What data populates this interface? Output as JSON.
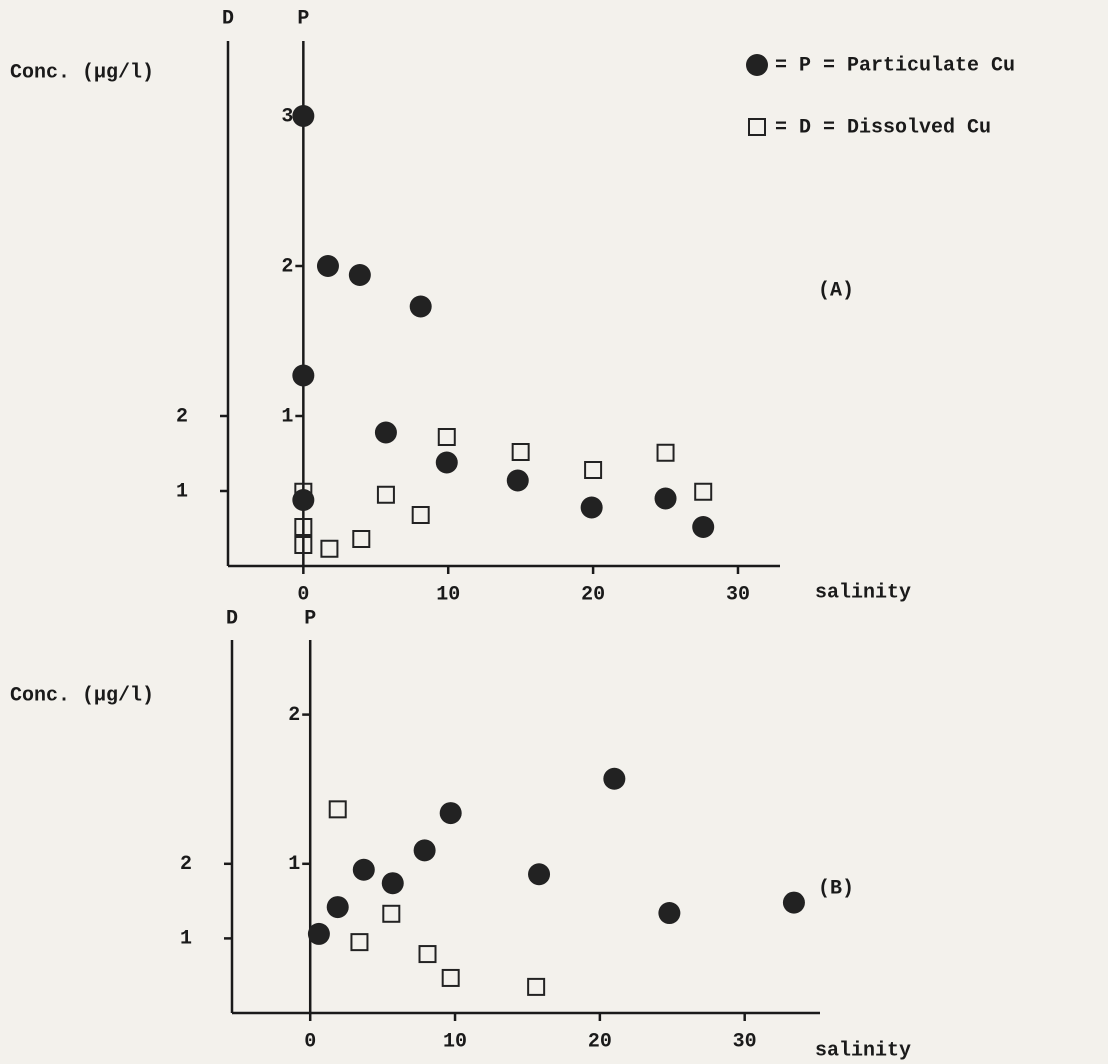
{
  "chart_data": [
    {
      "type": "scatter",
      "annotation": "(A)",
      "y_title": "Conc. (µg/l)",
      "y_label": "P",
      "y2_label": "D",
      "x_label": "salinity",
      "xlim": [
        -5.2,
        32.9
      ],
      "xticks": [
        0,
        10,
        20,
        30
      ],
      "ylim": [
        0,
        3.5
      ],
      "yticks": [
        1,
        2,
        3
      ],
      "y2lim": [
        0,
        7
      ],
      "y2ticks": [
        1,
        2
      ],
      "series": [
        {
          "name": "= P = Particulate Cu",
          "marker": "circle",
          "color": "#222222",
          "x": [
            0,
            1.7,
            3.9,
            8.1,
            0,
            5.7,
            9.9,
            14.8,
            19.9,
            25.0,
            27.6,
            0
          ],
          "values": [
            3.0,
            2.0,
            1.94,
            1.73,
            1.27,
            0.89,
            0.69,
            0.57,
            0.39,
            0.45,
            0.26,
            0.44
          ]
        },
        {
          "name": "= D = Dissolved Cu",
          "marker": "square",
          "color": "#222222",
          "axis": "y2",
          "x": [
            0,
            0,
            0,
            1.8,
            4.0,
            5.7,
            8.1,
            9.9,
            15.0,
            20.0,
            25.0,
            27.6
          ],
          "values": [
            0.99,
            0.52,
            0.28,
            0.23,
            0.36,
            0.95,
            0.68,
            1.72,
            1.52,
            1.28,
            1.51,
            0.99
          ]
        }
      ]
    },
    {
      "type": "scatter",
      "annotation": "(B)",
      "y_title": "Conc. (µg/l)",
      "y_label": "P",
      "y2_label": "D",
      "x_label": "salinity",
      "xlim": [
        -5.4,
        35.2
      ],
      "xticks": [
        0,
        10,
        20,
        30
      ],
      "ylim": [
        0,
        2.5
      ],
      "yticks": [
        1,
        2
      ],
      "y2lim": [
        0,
        5
      ],
      "y2ticks": [
        1,
        2
      ],
      "series": [
        {
          "marker": "circle",
          "color": "#222222",
          "x": [
            0.6,
            1.9,
            3.7,
            5.7,
            7.9,
            9.7,
            15.8,
            21.0,
            24.8,
            33.4
          ],
          "values": [
            0.53,
            0.71,
            0.96,
            0.87,
            1.09,
            1.34,
            0.93,
            1.57,
            0.67,
            0.74
          ]
        },
        {
          "marker": "square",
          "color": "#222222",
          "axis": "y2",
          "x": [
            1.9,
            5.6,
            3.4,
            8.1,
            9.7,
            15.6
          ],
          "values": [
            2.73,
            1.33,
            0.95,
            0.79,
            0.47,
            0.35
          ]
        }
      ]
    }
  ]
}
